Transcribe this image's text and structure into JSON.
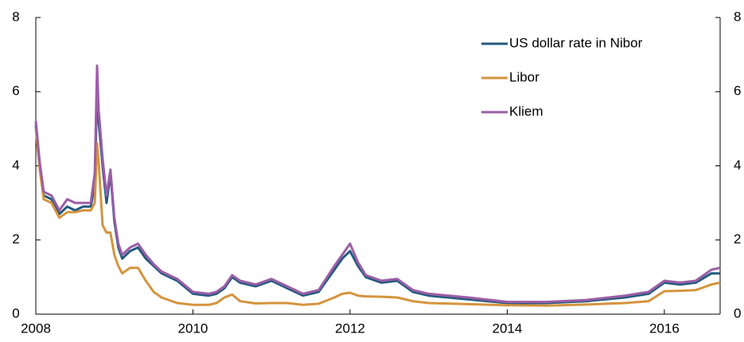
{
  "chart_data": {
    "type": "line",
    "x": [
      2008.0,
      2008.05,
      2008.1,
      2008.2,
      2008.3,
      2008.4,
      2008.5,
      2008.6,
      2008.7,
      2008.75,
      2008.78,
      2008.8,
      2008.85,
      2008.9,
      2008.95,
      2009.0,
      2009.05,
      2009.1,
      2009.2,
      2009.3,
      2009.4,
      2009.5,
      2009.6,
      2009.8,
      2010.0,
      2010.2,
      2010.3,
      2010.4,
      2010.5,
      2010.6,
      2010.8,
      2011.0,
      2011.2,
      2011.4,
      2011.6,
      2011.8,
      2011.9,
      2012.0,
      2012.1,
      2012.2,
      2012.4,
      2012.6,
      2012.8,
      2013.0,
      2013.5,
      2014.0,
      2014.5,
      2015.0,
      2015.5,
      2015.8,
      2016.0,
      2016.2,
      2016.4,
      2016.6,
      2016.71
    ],
    "series": [
      {
        "name": "US dollar rate in Nibor",
        "color": "#235a7e",
        "values": [
          5.1,
          4.0,
          3.2,
          3.1,
          2.7,
          2.9,
          2.8,
          2.9,
          2.9,
          3.5,
          6.0,
          5.2,
          4.0,
          3.0,
          3.8,
          2.5,
          1.8,
          1.5,
          1.7,
          1.8,
          1.5,
          1.3,
          1.1,
          0.9,
          0.55,
          0.5,
          0.55,
          0.7,
          1.0,
          0.85,
          0.75,
          0.9,
          0.7,
          0.5,
          0.6,
          1.2,
          1.5,
          1.7,
          1.3,
          1.0,
          0.85,
          0.9,
          0.6,
          0.5,
          0.4,
          0.3,
          0.3,
          0.35,
          0.45,
          0.55,
          0.85,
          0.8,
          0.85,
          1.1,
          1.1
        ]
      },
      {
        "name": "Libor",
        "color": "#d4943f",
        "values": [
          5.0,
          3.9,
          3.1,
          3.0,
          2.6,
          2.75,
          2.75,
          2.8,
          2.8,
          3.0,
          4.6,
          4.1,
          2.4,
          2.2,
          2.2,
          1.6,
          1.3,
          1.1,
          1.25,
          1.25,
          0.9,
          0.6,
          0.45,
          0.3,
          0.25,
          0.25,
          0.3,
          0.45,
          0.53,
          0.35,
          0.29,
          0.3,
          0.3,
          0.25,
          0.28,
          0.45,
          0.55,
          0.58,
          0.5,
          0.48,
          0.47,
          0.45,
          0.35,
          0.3,
          0.27,
          0.24,
          0.23,
          0.26,
          0.3,
          0.35,
          0.62,
          0.63,
          0.65,
          0.8,
          0.85
        ]
      },
      {
        "name": "Kliem",
        "color": "#9b5ea6",
        "values": [
          5.2,
          4.1,
          3.3,
          3.2,
          2.8,
          3.1,
          3.0,
          3.0,
          3.0,
          3.8,
          6.7,
          5.5,
          4.2,
          3.2,
          3.9,
          2.6,
          1.9,
          1.6,
          1.8,
          1.9,
          1.6,
          1.35,
          1.15,
          0.95,
          0.6,
          0.55,
          0.6,
          0.75,
          1.05,
          0.9,
          0.8,
          0.95,
          0.75,
          0.55,
          0.65,
          1.3,
          1.6,
          1.9,
          1.4,
          1.05,
          0.9,
          0.95,
          0.65,
          0.55,
          0.45,
          0.33,
          0.33,
          0.38,
          0.5,
          0.6,
          0.9,
          0.85,
          0.9,
          1.2,
          1.25
        ]
      }
    ],
    "xlim": [
      2008,
      2016.71
    ],
    "xticks": [
      2008,
      2010,
      2012,
      2014,
      2016
    ],
    "ylim": [
      0,
      8
    ],
    "yticks": [
      0,
      2,
      4,
      6,
      8
    ],
    "y2lim": [
      0,
      8
    ],
    "y2ticks": [
      0,
      2,
      4,
      6,
      8
    ],
    "legend": "upper right"
  }
}
